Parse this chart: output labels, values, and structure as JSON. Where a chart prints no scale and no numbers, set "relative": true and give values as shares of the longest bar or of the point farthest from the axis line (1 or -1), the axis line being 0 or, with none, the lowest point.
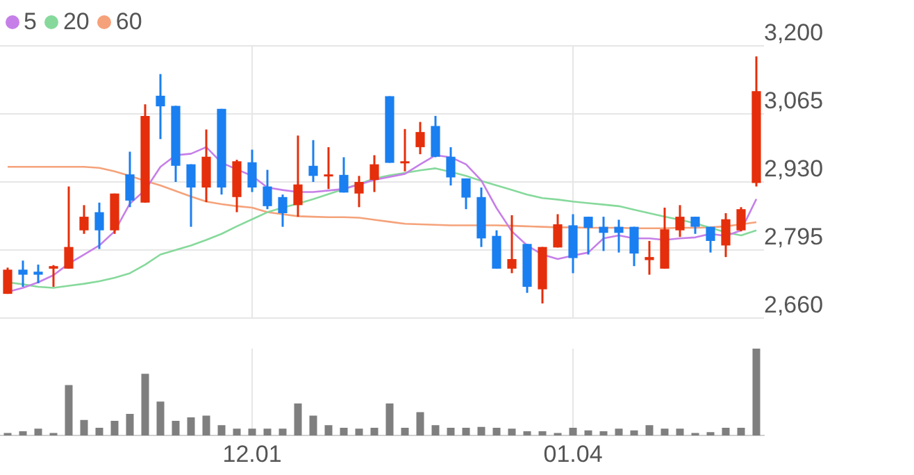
{
  "chart_data": [
    {
      "type": "candlestick",
      "legend": "top left",
      "grid": true,
      "tick_labels": "y",
      "marker": "none",
      "categories": [
        null,
        null,
        null,
        null,
        null,
        null,
        null,
        null,
        null,
        null,
        null,
        null,
        null,
        null,
        null,
        null,
        "12.01",
        null,
        null,
        null,
        null,
        null,
        null,
        null,
        null,
        null,
        null,
        null,
        null,
        null,
        null,
        null,
        null,
        null,
        null,
        null,
        null,
        "01.04",
        null,
        null,
        null,
        null,
        null,
        null,
        null,
        null,
        null,
        null,
        null,
        null
      ],
      "ylim": [
        2660,
        3200
      ],
      "yticks": [
        {
          "value": 2660,
          "label": "2,660"
        },
        {
          "value": 2795,
          "label": "2,795"
        },
        {
          "value": 2930,
          "label": "2,930"
        },
        {
          "value": 3065,
          "label": "3,065"
        },
        {
          "value": 3200,
          "label": "3,200"
        }
      ],
      "ohlc": [
        [
          2708,
          2760,
          2708,
          2756
        ],
        [
          2756,
          2774,
          2722,
          2746
        ],
        [
          2752,
          2766,
          2729,
          2746
        ],
        [
          2758,
          2765,
          2722,
          2763
        ],
        [
          2758,
          2921,
          2758,
          2801
        ],
        [
          2834,
          2884,
          2827,
          2861
        ],
        [
          2870,
          2889,
          2797,
          2834
        ],
        [
          2834,
          2907,
          2827,
          2907
        ],
        [
          2945,
          2990,
          2880,
          2893
        ],
        [
          2889,
          3084,
          2889,
          3061
        ],
        [
          3101,
          3144,
          3015,
          3080
        ],
        [
          3081,
          3081,
          2930,
          2962
        ],
        [
          2965,
          2965,
          2841,
          2919
        ],
        [
          2919,
          3034,
          2890,
          2980
        ],
        [
          3075,
          3075,
          2905,
          2919
        ],
        [
          2900,
          2974,
          2870,
          2971
        ],
        [
          2969,
          2994,
          2910,
          2919
        ],
        [
          2921,
          2954,
          2876,
          2882
        ],
        [
          2900,
          2905,
          2841,
          2868
        ],
        [
          2884,
          3022,
          2861,
          2925
        ],
        [
          2962,
          3013,
          2930,
          2942
        ],
        [
          2942,
          2999,
          2916,
          2945
        ],
        [
          2944,
          2979,
          2909,
          2909
        ],
        [
          2907,
          2942,
          2880,
          2930
        ],
        [
          2934,
          2983,
          2910,
          2965
        ],
        [
          3100,
          3100,
          2968,
          2968
        ],
        [
          2968,
          3035,
          2951,
          2971
        ],
        [
          2999,
          3049,
          2985,
          3029
        ],
        [
          3041,
          3061,
          2979,
          2980
        ],
        [
          2980,
          2999,
          2923,
          2939
        ],
        [
          2937,
          2937,
          2876,
          2899
        ],
        [
          2900,
          2919,
          2801,
          2818
        ],
        [
          2823,
          2834,
          2758,
          2758
        ],
        [
          2758,
          2864,
          2749,
          2777
        ],
        [
          2807,
          2807,
          2710,
          2722
        ],
        [
          2717,
          2801,
          2689,
          2801
        ],
        [
          2800,
          2866,
          2800,
          2846
        ],
        [
          2844,
          2866,
          2749,
          2779
        ],
        [
          2861,
          2861,
          2786,
          2839
        ],
        [
          2841,
          2861,
          2793,
          2829
        ],
        [
          2841,
          2855,
          2790,
          2829
        ],
        [
          2841,
          2841,
          2763,
          2788
        ],
        [
          2775,
          2813,
          2746,
          2781
        ],
        [
          2758,
          2879,
          2758,
          2836
        ],
        [
          2834,
          2884,
          2821,
          2861
        ],
        [
          2861,
          2861,
          2827,
          2841
        ],
        [
          2841,
          2841,
          2790,
          2813
        ],
        [
          2804,
          2868,
          2781,
          2856
        ],
        [
          2834,
          2880,
          2832,
          2876
        ],
        [
          2928,
          3179,
          2921,
          3110
        ]
      ],
      "colors": [
        "#e52e0b",
        "#1a7ff0",
        "#1a7ff0",
        "#e52e0b",
        "#e52e0b",
        "#e52e0b",
        "#1a7ff0",
        "#e52e0b",
        "#1a7ff0",
        "#e52e0b",
        "#1a7ff0",
        "#1a7ff0",
        "#1a7ff0",
        "#e52e0b",
        "#1a7ff0",
        "#e52e0b",
        "#1a7ff0",
        "#1a7ff0",
        "#1a7ff0",
        "#e52e0b",
        "#1a7ff0",
        "#e52e0b",
        "#1a7ff0",
        "#e52e0b",
        "#e52e0b",
        "#1a7ff0",
        "#e52e0b",
        "#e52e0b",
        "#1a7ff0",
        "#1a7ff0",
        "#1a7ff0",
        "#1a7ff0",
        "#1a7ff0",
        "#e52e0b",
        "#1a7ff0",
        "#e52e0b",
        "#e52e0b",
        "#1a7ff0",
        "#1a7ff0",
        "#1a7ff0",
        "#1a7ff0",
        "#1a7ff0",
        "#e52e0b",
        "#e52e0b",
        "#e52e0b",
        "#1a7ff0",
        "#1a7ff0",
        "#e52e0b",
        "#e52e0b",
        "#e52e0b"
      ],
      "series": [
        {
          "name": "5",
          "type": "line",
          "color": "#c67fe8",
          "values": [
            2712,
            2720,
            2731,
            2745,
            2768,
            2786,
            2804,
            2832,
            2887,
            2914,
            2960,
            2983,
            2986,
            2999,
            2968,
            2955,
            2942,
            2919,
            2914,
            2910,
            2910,
            2913,
            2916,
            2925,
            2934,
            2940,
            2946,
            2965,
            2983,
            2979,
            2965,
            2933,
            2878,
            2832,
            2804,
            2786,
            2777,
            2784,
            2790,
            2818,
            2824,
            2818,
            2818,
            2815,
            2818,
            2820,
            2827,
            2823,
            2834,
            2896
          ]
        },
        {
          "name": "20",
          "type": "line",
          "color": "#86d99b",
          "values": [
            2731,
            2727,
            2722,
            2720,
            2724,
            2728,
            2733,
            2740,
            2749,
            2766,
            2786,
            2795,
            2804,
            2815,
            2827,
            2842,
            2856,
            2870,
            2879,
            2887,
            2896,
            2906,
            2916,
            2926,
            2937,
            2943,
            2948,
            2953,
            2957,
            2950,
            2942,
            2932,
            2923,
            2914,
            2905,
            2898,
            2895,
            2891,
            2888,
            2885,
            2882,
            2875,
            2868,
            2861,
            2855,
            2848,
            2839,
            2830,
            2824,
            2834
          ]
        },
        {
          "name": "60",
          "type": "line",
          "color": "#f5a27a",
          "values": [
            2960,
            2960,
            2960,
            2960,
            2960,
            2960,
            2958,
            2951,
            2942,
            2932,
            2923,
            2912,
            2901,
            2891,
            2886,
            2882,
            2879,
            2870,
            2866,
            2862,
            2861,
            2860,
            2860,
            2859,
            2855,
            2851,
            2847,
            2846,
            2845,
            2844,
            2844,
            2844,
            2844,
            2843,
            2842,
            2841,
            2840,
            2840,
            2839,
            2839,
            2839,
            2838,
            2838,
            2838,
            2839,
            2839,
            2840,
            2842,
            2846,
            2850
          ]
        }
      ]
    },
    {
      "type": "bar",
      "relative": true,
      "grid": "x",
      "tick_labels": "x",
      "color": "#7f7f7f",
      "categories": [
        null,
        null,
        null,
        null,
        null,
        null,
        null,
        null,
        null,
        null,
        null,
        null,
        null,
        null,
        null,
        null,
        "12.01",
        null,
        null,
        null,
        null,
        null,
        null,
        null,
        null,
        null,
        null,
        null,
        null,
        null,
        null,
        null,
        null,
        null,
        null,
        null,
        null,
        "01.04",
        null,
        null,
        null,
        null,
        null,
        null,
        null,
        null,
        null,
        null,
        null,
        null
      ],
      "values": [
        0.03,
        0.05,
        0.08,
        0.03,
        0.58,
        0.18,
        0.09,
        0.17,
        0.25,
        0.71,
        0.39,
        0.17,
        0.21,
        0.23,
        0.12,
        0.08,
        0.08,
        0.08,
        0.08,
        0.37,
        0.23,
        0.12,
        0.09,
        0.08,
        0.09,
        0.37,
        0.09,
        0.27,
        0.12,
        0.09,
        0.09,
        0.1,
        0.09,
        0.08,
        0.05,
        0.05,
        0.03,
        0.09,
        0.06,
        0.05,
        0.08,
        0.06,
        0.12,
        0.08,
        0.08,
        0.03,
        0.04,
        0.09,
        0.09,
        1
      ]
    }
  ]
}
